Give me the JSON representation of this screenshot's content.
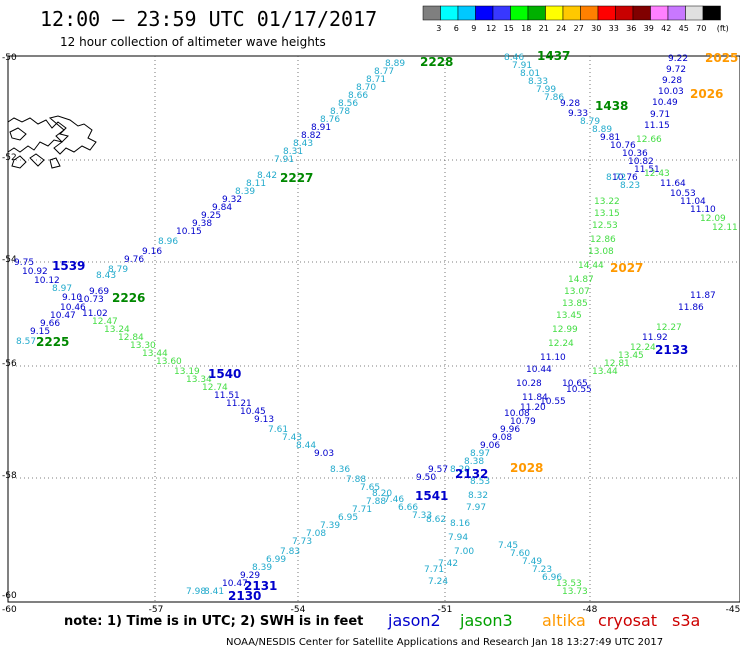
{
  "title": "12:00 – 23:59 UTC 01/17/2017",
  "subtitle": "12 hour collection of altimeter wave heights",
  "legend": {
    "colors": [
      "#7f7f7f",
      "#00ffff",
      "#00c8ff",
      "#0000ff",
      "#3838ff",
      "#00ff00",
      "#00b000",
      "#ffff00",
      "#ffc800",
      "#ff8000",
      "#ff0000",
      "#c80000",
      "#800000",
      "#ff80ff",
      "#c878ff",
      "#e0e0e0",
      "#000000"
    ],
    "labels": [
      "3",
      "6",
      "9",
      "12",
      "15",
      "18",
      "21",
      "24",
      "27",
      "30",
      "33",
      "36",
      "39",
      "42",
      "45",
      "70",
      "(ft)"
    ]
  },
  "axes": {
    "y_labels": [
      "-50",
      "-52",
      "-54",
      "-56",
      "-58",
      "-60"
    ],
    "x_labels": [
      "-57",
      "-54",
      "-51",
      "-48",
      "-45"
    ]
  },
  "note": "note: 1) Time is in UTC; 2) SWH is in feet",
  "satellites": [
    {
      "name": "jason2",
      "color": "#0000cc"
    },
    {
      "name": "jason3",
      "color": "#00a000"
    },
    {
      "name": "altika",
      "color": "#ff9900"
    },
    {
      "name": "cryosat",
      "color": "#cc0000"
    },
    {
      "name": "s3a",
      "color": "#cc0000"
    }
  ],
  "footer": "NOAA/NESDIS Center for Satellite Applications and Research    Jan 18 13:27:49 UTC 2017",
  "colors": {
    "jason2": "#0000cc",
    "jason3": "#008800",
    "altika": "#ff9900",
    "cyan": "#22aacc",
    "green": "#44dd44"
  },
  "passes": [
    {
      "label": "2228",
      "color": "#008800"
    },
    {
      "label": "1437",
      "color": "#008800"
    },
    {
      "label": "2025",
      "color": "#ff9900"
    },
    {
      "label": "1438",
      "color": "#008800"
    },
    {
      "label": "2026",
      "color": "#ff9900"
    },
    {
      "label": "2227",
      "color": "#008800"
    },
    {
      "label": "1539",
      "color": "#0000cc"
    },
    {
      "label": "2226",
      "color": "#008800"
    },
    {
      "label": "2225",
      "color": "#008800"
    },
    {
      "label": "2027",
      "color": "#ff9900"
    },
    {
      "label": "1540",
      "color": "#0000cc"
    },
    {
      "label": "2133",
      "color": "#0000cc"
    },
    {
      "label": "2132",
      "color": "#0000cc"
    },
    {
      "label": "2028",
      "color": "#ff9900"
    },
    {
      "label": "1541",
      "color": "#0000cc"
    },
    {
      "label": "2131",
      "color": "#0000cc"
    },
    {
      "label": "2130",
      "color": "#0000cc"
    }
  ],
  "values": [
    {
      "t": "8.89",
      "c": "cyan"
    },
    {
      "t": "8.77",
      "c": "cyan"
    },
    {
      "t": "8.71",
      "c": "cyan"
    },
    {
      "t": "8.70",
      "c": "cyan"
    },
    {
      "t": "8.66",
      "c": "cyan"
    },
    {
      "t": "8.56",
      "c": "cyan"
    },
    {
      "t": "8.78",
      "c": "cyan"
    },
    {
      "t": "8.76",
      "c": "cyan"
    },
    {
      "t": "8.91",
      "c": "j2"
    },
    {
      "t": "8.82",
      "c": "j2"
    },
    {
      "t": "8.43",
      "c": "cyan"
    },
    {
      "t": "8.31",
      "c": "cyan"
    },
    {
      "t": "7.91",
      "c": "cyan"
    },
    {
      "t": "8.42",
      "c": "cyan"
    },
    {
      "t": "8.11",
      "c": "cyan"
    },
    {
      "t": "8.39",
      "c": "cyan"
    },
    {
      "t": "9.32",
      "c": "j2"
    },
    {
      "t": "9.84",
      "c": "j2"
    },
    {
      "t": "9.25",
      "c": "j2"
    },
    {
      "t": "9.38",
      "c": "j2"
    },
    {
      "t": "10.15",
      "c": "j2"
    },
    {
      "t": "8.96",
      "c": "cyan"
    },
    {
      "t": "9.16",
      "c": "j2"
    },
    {
      "t": "9.76",
      "c": "j2"
    },
    {
      "t": "9.75",
      "c": "j2"
    },
    {
      "t": "10.92",
      "c": "j2"
    },
    {
      "t": "10.12",
      "c": "j2"
    },
    {
      "t": "8.97",
      "c": "cyan"
    },
    {
      "t": "9.10",
      "c": "j2"
    },
    {
      "t": "10.73",
      "c": "j2"
    },
    {
      "t": "10.46",
      "c": "j2"
    },
    {
      "t": "10.47",
      "c": "j2"
    },
    {
      "t": "9.66",
      "c": "j2"
    },
    {
      "t": "9.15",
      "c": "j2"
    },
    {
      "t": "8.57",
      "c": "cyan"
    },
    {
      "t": "8.43",
      "c": "cyan"
    },
    {
      "t": "8.79",
      "c": "cyan"
    },
    {
      "t": "9.69",
      "c": "j2"
    },
    {
      "t": "11.02",
      "c": "j2"
    },
    {
      "t": "12.47",
      "c": "green"
    },
    {
      "t": "13.24",
      "c": "green"
    },
    {
      "t": "12.84",
      "c": "green"
    },
    {
      "t": "13.30",
      "c": "green"
    },
    {
      "t": "13.44",
      "c": "green"
    },
    {
      "t": "13.60",
      "c": "green"
    },
    {
      "t": "13.19",
      "c": "green"
    },
    {
      "t": "13.34",
      "c": "green"
    },
    {
      "t": "12.74",
      "c": "green"
    },
    {
      "t": "11.51",
      "c": "j2"
    },
    {
      "t": "11.21",
      "c": "j2"
    },
    {
      "t": "10.45",
      "c": "j2"
    },
    {
      "t": "9.13",
      "c": "j2"
    },
    {
      "t": "7.61",
      "c": "cyan"
    },
    {
      "t": "7.43",
      "c": "cyan"
    },
    {
      "t": "8.44",
      "c": "cyan"
    },
    {
      "t": "9.03",
      "c": "j2"
    },
    {
      "t": "8.36",
      "c": "cyan"
    },
    {
      "t": "7.88",
      "c": "cyan"
    },
    {
      "t": "7.65",
      "c": "cyan"
    },
    {
      "t": "8.20",
      "c": "cyan"
    },
    {
      "t": "7.46",
      "c": "cyan"
    },
    {
      "t": "6.66",
      "c": "cyan"
    },
    {
      "t": "7.33",
      "c": "cyan"
    },
    {
      "t": "8.62",
      "c": "cyan"
    },
    {
      "t": "7.88",
      "c": "cyan"
    },
    {
      "t": "7.71",
      "c": "cyan"
    },
    {
      "t": "6.95",
      "c": "cyan"
    },
    {
      "t": "7.39",
      "c": "cyan"
    },
    {
      "t": "7.08",
      "c": "cyan"
    },
    {
      "t": "7.73",
      "c": "cyan"
    },
    {
      "t": "7.83",
      "c": "cyan"
    },
    {
      "t": "6.99",
      "c": "cyan"
    },
    {
      "t": "8.39",
      "c": "cyan"
    },
    {
      "t": "9.29",
      "c": "j2"
    },
    {
      "t": "10.47",
      "c": "j2"
    },
    {
      "t": "8.41",
      "c": "cyan"
    },
    {
      "t": "7.98",
      "c": "cyan"
    },
    {
      "t": "8.46",
      "c": "cyan"
    },
    {
      "t": "7.91",
      "c": "cyan"
    },
    {
      "t": "8.01",
      "c": "cyan"
    },
    {
      "t": "8.33",
      "c": "cyan"
    },
    {
      "t": "7.99",
      "c": "cyan"
    },
    {
      "t": "7.86",
      "c": "cyan"
    },
    {
      "t": "9.28",
      "c": "j2"
    },
    {
      "t": "9.33",
      "c": "j2"
    },
    {
      "t": "8.79",
      "c": "cyan"
    },
    {
      "t": "8.89",
      "c": "cyan"
    },
    {
      "t": "9.81",
      "c": "j2"
    },
    {
      "t": "10.76",
      "c": "j2"
    },
    {
      "t": "10.36",
      "c": "j2"
    },
    {
      "t": "10.82",
      "c": "j2"
    },
    {
      "t": "11.51",
      "c": "j2"
    },
    {
      "t": "10.76",
      "c": "j2"
    },
    {
      "t": "8.23",
      "c": "cyan"
    },
    {
      "t": "8.72",
      "c": "cyan"
    },
    {
      "t": "9.22",
      "c": "j2"
    },
    {
      "t": "9.72",
      "c": "j2"
    },
    {
      "t": "9.28",
      "c": "j2"
    },
    {
      "t": "10.03",
      "c": "j2"
    },
    {
      "t": "10.49",
      "c": "j2"
    },
    {
      "t": "9.71",
      "c": "j2"
    },
    {
      "t": "11.15",
      "c": "j2"
    },
    {
      "t": "12.66",
      "c": "green"
    },
    {
      "t": "12.43",
      "c": "green"
    },
    {
      "t": "11.64",
      "c": "j2"
    },
    {
      "t": "10.53",
      "c": "j2"
    },
    {
      "t": "11.04",
      "c": "j2"
    },
    {
      "t": "11.10",
      "c": "j2"
    },
    {
      "t": "12.09",
      "c": "green"
    },
    {
      "t": "12.11",
      "c": "green"
    },
    {
      "t": "13.22",
      "c": "green"
    },
    {
      "t": "13.15",
      "c": "green"
    },
    {
      "t": "12.53",
      "c": "green"
    },
    {
      "t": "12.86",
      "c": "green"
    },
    {
      "t": "13.08",
      "c": "green"
    },
    {
      "t": "14.44",
      "c": "green"
    },
    {
      "t": "14.87",
      "c": "green"
    },
    {
      "t": "13.07",
      "c": "green"
    },
    {
      "t": "13.85",
      "c": "green"
    },
    {
      "t": "13.45",
      "c": "green"
    },
    {
      "t": "12.99",
      "c": "green"
    },
    {
      "t": "12.24",
      "c": "green"
    },
    {
      "t": "11.10",
      "c": "j2"
    },
    {
      "t": "10.44",
      "c": "j2"
    },
    {
      "t": "10.28",
      "c": "j2"
    },
    {
      "t": "11.84",
      "c": "j2"
    },
    {
      "t": "11.20",
      "c": "j2"
    },
    {
      "t": "10.65",
      "c": "j2"
    },
    {
      "t": "10.55",
      "c": "j2"
    },
    {
      "t": "10.55",
      "c": "j2"
    },
    {
      "t": "10.08",
      "c": "j2"
    },
    {
      "t": "10.79",
      "c": "j2"
    },
    {
      "t": "9.96",
      "c": "j2"
    },
    {
      "t": "9.08",
      "c": "j2"
    },
    {
      "t": "9.06",
      "c": "j2"
    },
    {
      "t": "8.97",
      "c": "cyan"
    },
    {
      "t": "8.38",
      "c": "cyan"
    },
    {
      "t": "8.29",
      "c": "cyan"
    },
    {
      "t": "9.57",
      "c": "j2"
    },
    {
      "t": "9.50",
      "c": "j2"
    },
    {
      "t": "8.53",
      "c": "cyan"
    },
    {
      "t": "8.32",
      "c": "cyan"
    },
    {
      "t": "7.97",
      "c": "cyan"
    },
    {
      "t": "8.16",
      "c": "cyan"
    },
    {
      "t": "7.94",
      "c": "cyan"
    },
    {
      "t": "7.00",
      "c": "cyan"
    },
    {
      "t": "7.42",
      "c": "cyan"
    },
    {
      "t": "7.71",
      "c": "cyan"
    },
    {
      "t": "7.24",
      "c": "cyan"
    },
    {
      "t": "7.45",
      "c": "cyan"
    },
    {
      "t": "7.60",
      "c": "cyan"
    },
    {
      "t": "7.49",
      "c": "cyan"
    },
    {
      "t": "7.23",
      "c": "cyan"
    },
    {
      "t": "6.96",
      "c": "cyan"
    },
    {
      "t": "13.53",
      "c": "green"
    },
    {
      "t": "13.73",
      "c": "green"
    },
    {
      "t": "13.44",
      "c": "green"
    },
    {
      "t": "12.81",
      "c": "green"
    },
    {
      "t": "13.45",
      "c": "green"
    },
    {
      "t": "12.24",
      "c": "green"
    },
    {
      "t": "11.92",
      "c": "j2"
    },
    {
      "t": "12.27",
      "c": "green"
    },
    {
      "t": "11.86",
      "c": "j2"
    },
    {
      "t": "11.87",
      "c": "j2"
    }
  ]
}
